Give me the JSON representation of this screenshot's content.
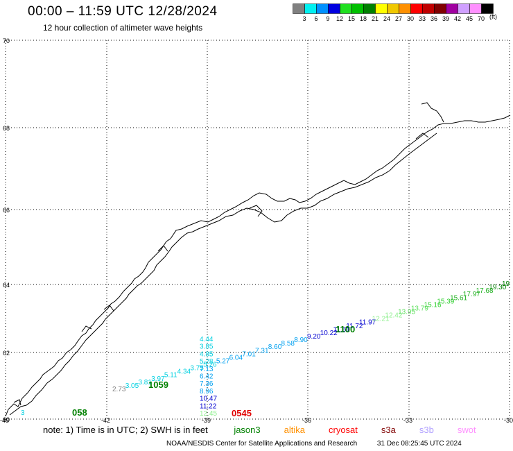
{
  "header": {
    "title": "00:00 – 11:59 UTC 12/28/2024",
    "subtitle": "12 hour collection of altimeter wave heights"
  },
  "color_scale": {
    "unit": "(ft)",
    "steps": [
      {
        "label": "3",
        "color": "#808080"
      },
      {
        "label": "6",
        "color": "#00f0f0"
      },
      {
        "label": "9",
        "color": "#0090ff"
      },
      {
        "label": "12",
        "color": "#0000e0"
      },
      {
        "label": "15",
        "color": "#20e020"
      },
      {
        "label": "18",
        "color": "#00c000"
      },
      {
        "label": "21",
        "color": "#008000"
      },
      {
        "label": "24",
        "color": "#ffff00"
      },
      {
        "label": "27",
        "color": "#f0c800"
      },
      {
        "label": "30",
        "color": "#ff9000"
      },
      {
        "label": "33",
        "color": "#ff0000"
      },
      {
        "label": "36",
        "color": "#c00000"
      },
      {
        "label": "39",
        "color": "#800000"
      },
      {
        "label": "42",
        "color": "#a000a0"
      },
      {
        "label": "45",
        "color": "#d0a0ff"
      },
      {
        "label": "70",
        "color": "#ff90ff"
      },
      {
        "label": "",
        "color": "#000000"
      }
    ]
  },
  "map": {
    "lon_ticks": [
      "-45",
      "-42",
      "-39",
      "-36",
      "-33",
      "-30"
    ],
    "lat_ticks": [
      "70",
      "68",
      "66",
      "64",
      "62",
      "60"
    ],
    "track_a": [
      {
        "v": "2.73",
        "c": "#808080"
      },
      {
        "v": "3.05",
        "c": "#00d0e0"
      },
      {
        "v": "3.81",
        "c": "#00d0e0"
      },
      {
        "v": "3.97",
        "c": "#00d0e0"
      },
      {
        "v": "5.11",
        "c": "#00d0e0"
      },
      {
        "v": "4.34",
        "c": "#00d0e0"
      },
      {
        "v": "3.75",
        "c": "#00d0e0"
      },
      {
        "v": "5.26",
        "c": "#00d0e0"
      },
      {
        "v": "5.27",
        "c": "#00a0f0"
      },
      {
        "v": "6.04",
        "c": "#00a0f0"
      },
      {
        "v": "7.01",
        "c": "#00a0f0"
      },
      {
        "v": "7.31",
        "c": "#00a0f0"
      },
      {
        "v": "8.60",
        "c": "#00a0f0"
      },
      {
        "v": "8.58",
        "c": "#00a0f0"
      },
      {
        "v": "8.90",
        "c": "#00a0f0"
      },
      {
        "v": "9.20",
        "c": "#0000d0"
      },
      {
        "v": "10.22",
        "c": "#0000d0"
      },
      {
        "v": "11.61",
        "c": "#0000d0"
      },
      {
        "v": "11.72",
        "c": "#0000d0"
      },
      {
        "v": "11.97",
        "c": "#0000d0"
      },
      {
        "v": "12.21",
        "c": "#90f090"
      },
      {
        "v": "12.42",
        "c": "#90f090"
      },
      {
        "v": "13.95",
        "c": "#60e060"
      },
      {
        "v": "13.79",
        "c": "#60e060"
      },
      {
        "v": "15.16",
        "c": "#30d030"
      },
      {
        "v": "15.39",
        "c": "#30d030"
      },
      {
        "v": "15.61",
        "c": "#20b020"
      },
      {
        "v": "17.97",
        "c": "#20b020"
      },
      {
        "v": "17.68",
        "c": "#20b020"
      },
      {
        "v": "19.30",
        "c": "#008000"
      },
      {
        "v": "19",
        "c": "#008000"
      }
    ],
    "track_b": [
      {
        "v": "4.44",
        "c": "#00d0e0"
      },
      {
        "v": "3.85",
        "c": "#00d0e0"
      },
      {
        "v": "4.85",
        "c": "#00d0e0"
      },
      {
        "v": "5.28",
        "c": "#00d0e0"
      },
      {
        "v": "7.13",
        "c": "#00a0f0"
      },
      {
        "v": "6.42",
        "c": "#00a0f0"
      },
      {
        "v": "7.36",
        "c": "#00a0f0"
      },
      {
        "v": "8.96",
        "c": "#00a0f0"
      },
      {
        "v": "10.47",
        "c": "#0000d0"
      },
      {
        "v": "11.22",
        "c": "#0000d0"
      },
      {
        "v": "12.45",
        "c": "#90f090"
      }
    ],
    "pass_times": [
      {
        "v": "1059",
        "c": "#008000"
      },
      {
        "v": "1100",
        "c": "#008000"
      },
      {
        "v": "058",
        "c": "#008000"
      },
      {
        "v": "0545",
        "c": "#e00000"
      }
    ],
    "partial_label": "3"
  },
  "legend_note": {
    "prefix": "note: 1) Time is in UTC; 2) SWH is in feet",
    "satellites": [
      {
        "name": "jason3",
        "color": "#008000"
      },
      {
        "name": "altika",
        "color": "#ff9000"
      },
      {
        "name": "cryosat",
        "color": "#ff0000"
      },
      {
        "name": "s3a",
        "color": "#800000"
      },
      {
        "name": "s3b",
        "color": "#b0a0ff"
      },
      {
        "name": "swot",
        "color": "#ff90ff"
      }
    ]
  },
  "footer": {
    "credit": "NOAA/NESDIS Center for Satellite Applications and Research",
    "timestamp": "31 Dec 08:25:45 UTC 2024"
  }
}
